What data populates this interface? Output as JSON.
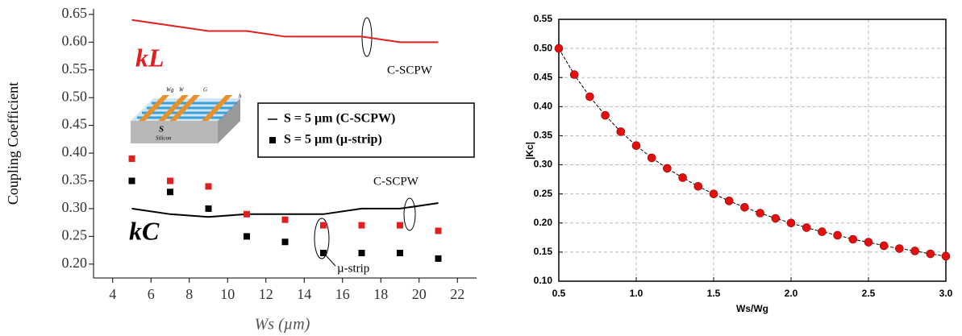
{
  "chart_data": [
    {
      "type": "line",
      "x_label": "Ws (µm)",
      "y_label": "Coupling Coefficient",
      "x": [
        5,
        7,
        9,
        11,
        13,
        15,
        17,
        19,
        21
      ],
      "series": [
        {
          "color": "#e02020",
          "mode": "line",
          "values": [
            0.64,
            0.63,
            0.62,
            0.62,
            0.61,
            0.61,
            0.61,
            0.6,
            0.6
          ]
        },
        {
          "name": "S = 5 µm (C-SCPW)",
          "color": "#000000",
          "mode": "line",
          "values": [
            0.3,
            0.29,
            0.285,
            0.29,
            0.29,
            0.29,
            0.3,
            0.3,
            0.31
          ]
        },
        {
          "color": "#e02020",
          "mode": "markers",
          "values": [
            0.39,
            0.35,
            0.34,
            0.29,
            0.28,
            0.27,
            0.27,
            0.27,
            0.26
          ]
        },
        {
          "name": "S = 5 µm (µ-strip)",
          "color": "#000000",
          "mode": "markers",
          "values": [
            0.35,
            0.33,
            0.3,
            0.25,
            0.24,
            0.22,
            0.22,
            0.22,
            0.21
          ]
        }
      ],
      "xlim": [
        3,
        23
      ],
      "xticks": [
        4,
        6,
        8,
        10,
        12,
        14,
        16,
        18,
        20,
        22
      ],
      "ylim": [
        0.175,
        0.66
      ],
      "yticks": [
        {
          "value": 0.2,
          "label": "0.20"
        },
        0.25,
        {
          "value": 0.3,
          "label": "0.30"
        },
        0.35,
        {
          "value": 0.4,
          "label": "0.40"
        },
        0.45,
        {
          "value": 0.5,
          "label": "0.50"
        },
        0.55,
        {
          "value": 0.6,
          "label": "0.60"
        },
        0.65
      ],
      "grid": false,
      "legend": "center right",
      "annotations": [
        "kL",
        "kC",
        "C-SCPW",
        "C-SCPW",
        "µ-strip"
      ],
      "inset_labels": [
        "Wg",
        "W",
        "G",
        "h",
        "S",
        "Silicon"
      ]
    },
    {
      "type": "scatter",
      "x_label": "Ws/Wg",
      "y_label": "|Kc|",
      "x": [
        0.5,
        0.6,
        0.7,
        0.8,
        0.9,
        1.0,
        1.1,
        1.2,
        1.3,
        1.4,
        1.5,
        1.6,
        1.7,
        1.8,
        1.9,
        2.0,
        2.1,
        2.2,
        2.3,
        2.4,
        2.5,
        2.6,
        2.7,
        2.8,
        2.9,
        3.0
      ],
      "series": [
        {
          "color": "#e01010",
          "mode": "markers+line",
          "line_color": "#000000",
          "values": [
            0.5,
            0.455,
            0.417,
            0.385,
            0.357,
            0.333,
            0.312,
            0.294,
            0.278,
            0.263,
            0.25,
            0.238,
            0.227,
            0.217,
            0.208,
            0.2,
            0.192,
            0.185,
            0.179,
            0.172,
            0.167,
            0.161,
            0.156,
            0.152,
            0.147,
            0.143
          ]
        }
      ],
      "xlim": [
        0.5,
        3.0
      ],
      "xticks": [
        0.5,
        {
          "value": 1,
          "label": "1.0"
        },
        1.5,
        {
          "value": 2,
          "label": "2.0"
        },
        2.5,
        {
          "value": 3,
          "label": "3.0"
        }
      ],
      "ylim": [
        0.1,
        0.55
      ],
      "yticks": [
        {
          "value": 0.1,
          "label": "0.10"
        },
        0.15,
        {
          "value": 0.2,
          "label": "0.20"
        },
        0.25,
        {
          "value": 0.3,
          "label": "0.30"
        },
        0.35,
        {
          "value": 0.4,
          "label": "0.40"
        },
        0.45,
        {
          "value": 0.5,
          "label": "0.50"
        },
        0.55
      ],
      "grid": true
    }
  ]
}
